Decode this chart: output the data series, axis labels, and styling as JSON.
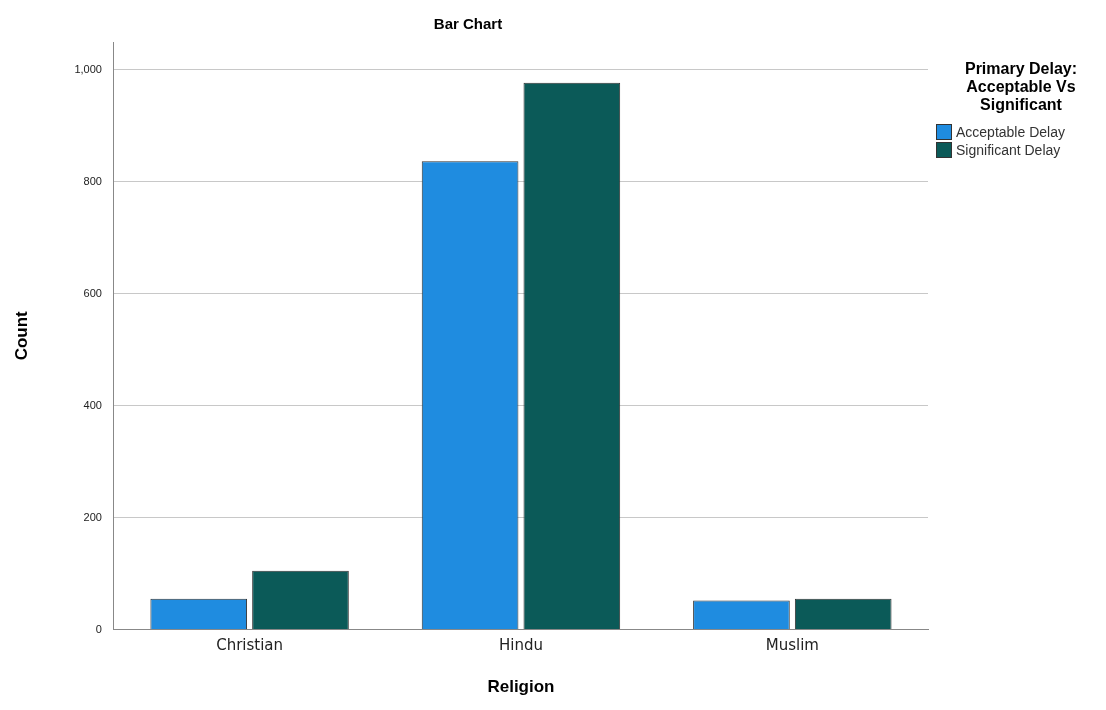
{
  "chart_data": {
    "type": "bar",
    "title": "Bar Chart",
    "xlabel": "Religion",
    "ylabel": "Count",
    "legend_title": "Primary Delay: Acceptable Vs Significant",
    "categories": [
      "Christian",
      "Hindu",
      "Muslim"
    ],
    "series": [
      {
        "name": "Acceptable Delay",
        "color": "#1f8ce0",
        "values": [
          55,
          837,
          52
        ]
      },
      {
        "name": "Significant Delay",
        "color": "#0b5a58",
        "values": [
          105,
          977,
          55
        ]
      }
    ],
    "ylim": [
      0,
      1050
    ],
    "yticks": [
      0,
      200,
      400,
      600,
      800,
      {
        "value": 1000,
        "label": "1,000"
      }
    ],
    "grid": "y",
    "legend": "top right"
  }
}
